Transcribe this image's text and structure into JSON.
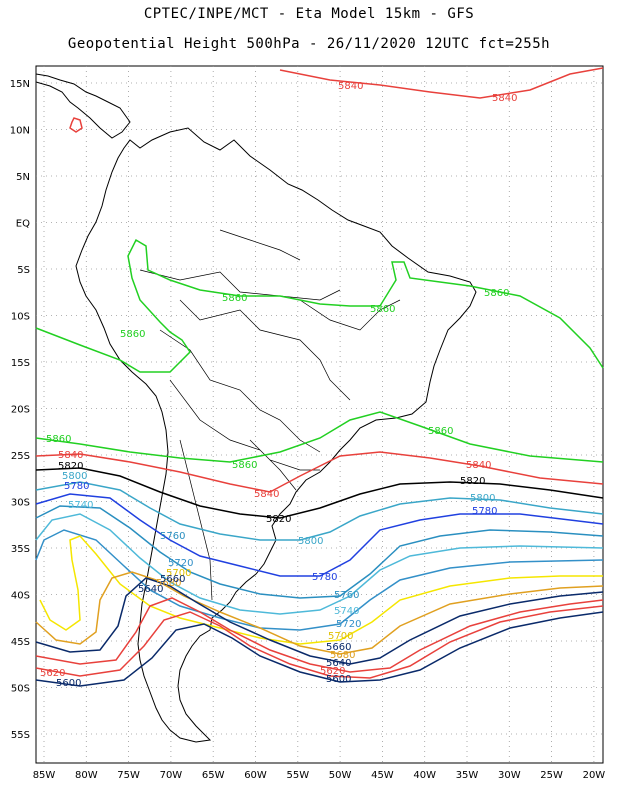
{
  "header": {
    "line1": "CPTEC/INPE/MCT -  Eta Model 15km - GFS",
    "line2": "Geopotential Height 500hPa - 26/11/2020 12UTC fct=255h"
  },
  "axes": {
    "lat_labels": [
      "15N",
      "10N",
      "5N",
      "EQ",
      "5S",
      "10S",
      "15S",
      "20S",
      "25S",
      "30S",
      "35S",
      "40S",
      "45S",
      "50S",
      "55S"
    ],
    "lon_labels": [
      "85W",
      "80W",
      "75W",
      "70W",
      "65W",
      "60W",
      "55W",
      "50W",
      "45W",
      "40W",
      "35W",
      "30W",
      "25W",
      "20W"
    ]
  },
  "contours": [
    {
      "value": "5840",
      "color": "#e8413c"
    },
    {
      "value": "5860",
      "color": "#22d022"
    },
    {
      "value": "5820",
      "color": "#000000"
    },
    {
      "value": "5800",
      "color": "#3aa6c8"
    },
    {
      "value": "5780",
      "color": "#2040e0"
    },
    {
      "value": "5760",
      "color": "#2a8fc0"
    },
    {
      "value": "5740",
      "color": "#4eb9d9"
    },
    {
      "value": "5720",
      "color": "#3390c8"
    },
    {
      "value": "5700",
      "color": "#f5e600"
    },
    {
      "value": "5680",
      "color": "#e0a020"
    },
    {
      "value": "5660",
      "color": "#0a2a6a"
    },
    {
      "value": "5640",
      "color": "#e8413c"
    },
    {
      "value": "5620",
      "color": "#e8413c"
    },
    {
      "value": "5600",
      "color": "#0a2a6a"
    }
  ],
  "labels": {
    "c5840_top1": "5840",
    "c5840_top2": "5840",
    "c5860_a": "5860",
    "c5860_b": "5860",
    "c5860_c": "5860",
    "c5860_d": "5860",
    "c5860_e": "5860",
    "c5860_f": "5860",
    "c5860_g": "5860",
    "c5840_a": "5840",
    "c5840_b": "5840",
    "c5840_c": "5840",
    "c5820_a": "5820",
    "c5820_b": "5820",
    "c5820_c": "5820",
    "c5800_a": "5800",
    "c5800_b": "5800",
    "c5800_c": "5800",
    "c5780_a": "5780",
    "c5780_b": "5780",
    "c5780_c": "5780",
    "c5760_a": "5760",
    "c5760_b": "5760",
    "c5740_a": "5740",
    "c5740_b": "5740",
    "c5720_a": "5720",
    "c5720_b": "5720",
    "c5700_a": "5700",
    "c5700_b": "5700",
    "c5680_a": "5680",
    "c5680_b": "5680",
    "c5660_a": "5660",
    "c5660_b": "5660",
    "c5640_a": "5640",
    "c5640_b": "5640",
    "c5620_a": "5620",
    "c5620_b": "5620",
    "c5600_a": "5600",
    "c5600_b": "5600"
  }
}
